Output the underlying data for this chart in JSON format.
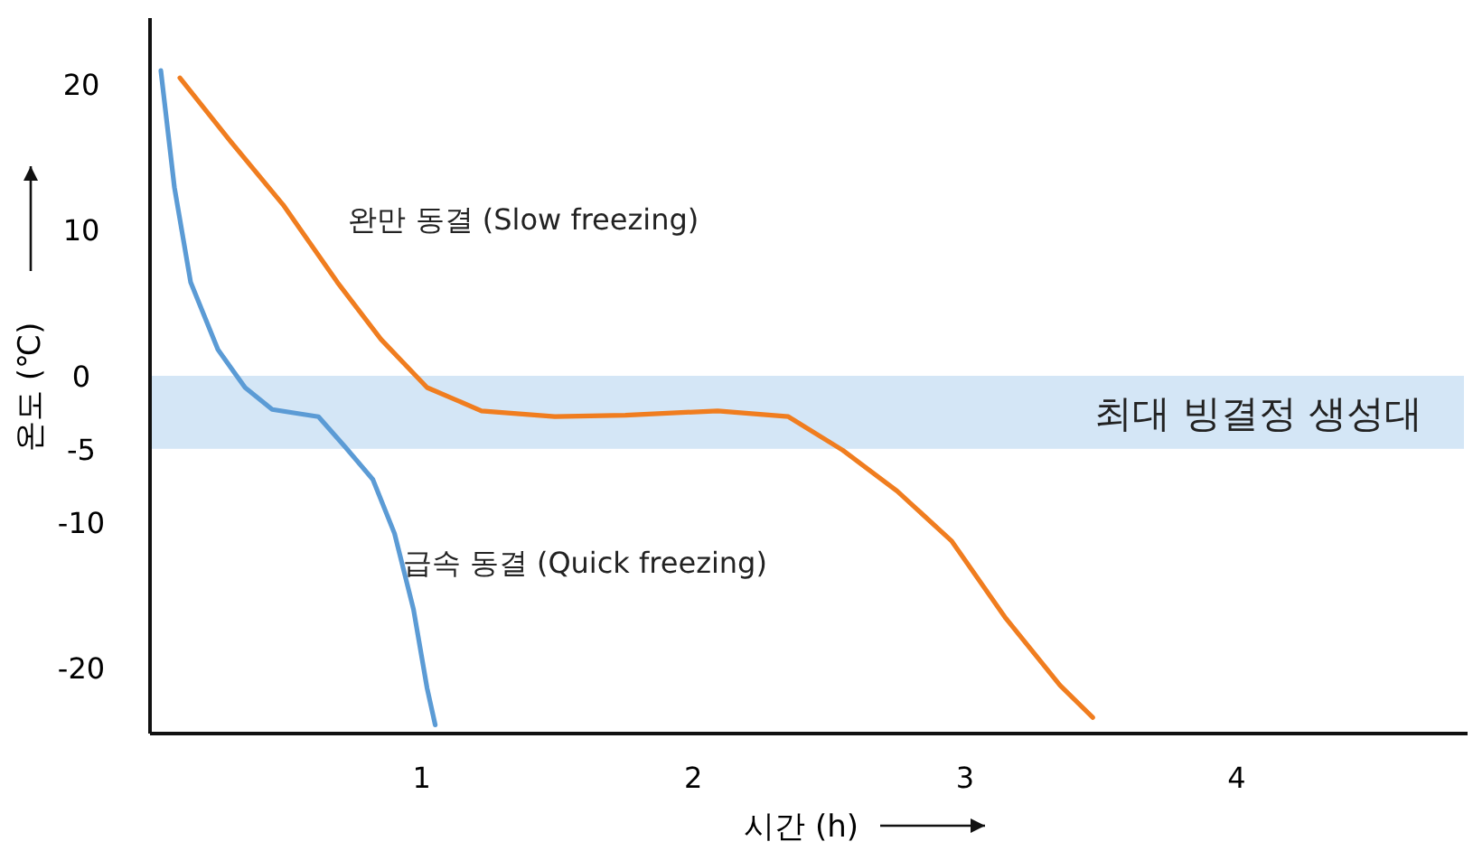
{
  "chart_data": {
    "type": "line",
    "xlabel": "시간 (h)",
    "ylabel": "온도 (℃)",
    "xlim": [
      0,
      4.85
    ],
    "ylim": [
      -24.5,
      24.5
    ],
    "xticks": [
      1,
      2,
      3,
      4
    ],
    "yticks": [
      20,
      10,
      0,
      -5,
      -10,
      -20
    ],
    "marker": "none",
    "line_style": "solid",
    "bands": [
      {
        "axis": "y",
        "from": -5,
        "to": 0,
        "label": "최대 빙결정 생성대",
        "color": "#cfe3f5"
      }
    ],
    "series": [
      {
        "name": "급속 동결 (Quick freezing)",
        "color": "#5b9bd5",
        "x": [
          0.04,
          0.09,
          0.15,
          0.25,
          0.35,
          0.45,
          0.55,
          0.62,
          0.72,
          0.82,
          0.9,
          0.97,
          1.02,
          1.05
        ],
        "values": [
          20.9,
          12.9,
          6.4,
          1.8,
          -0.8,
          -2.3,
          -2.6,
          -2.8,
          -4.9,
          -7.1,
          -10.8,
          -16,
          -21.4,
          -23.9
        ]
      },
      {
        "name": "완만 동결 (Slow freezing)",
        "color": "#f07d1f",
        "x": [
          0.11,
          0.29,
          0.49,
          0.69,
          0.85,
          1.02,
          1.22,
          1.49,
          1.75,
          2.09,
          2.35,
          2.55,
          2.75,
          2.95,
          3.15,
          3.35,
          3.47
        ],
        "values": [
          20.4,
          16.2,
          11.7,
          6.4,
          2.5,
          -0.8,
          -2.4,
          -2.8,
          -2.7,
          -2.4,
          -2.8,
          -5.1,
          -7.9,
          -11.3,
          -16.6,
          -21.2,
          -23.4
        ]
      }
    ]
  }
}
